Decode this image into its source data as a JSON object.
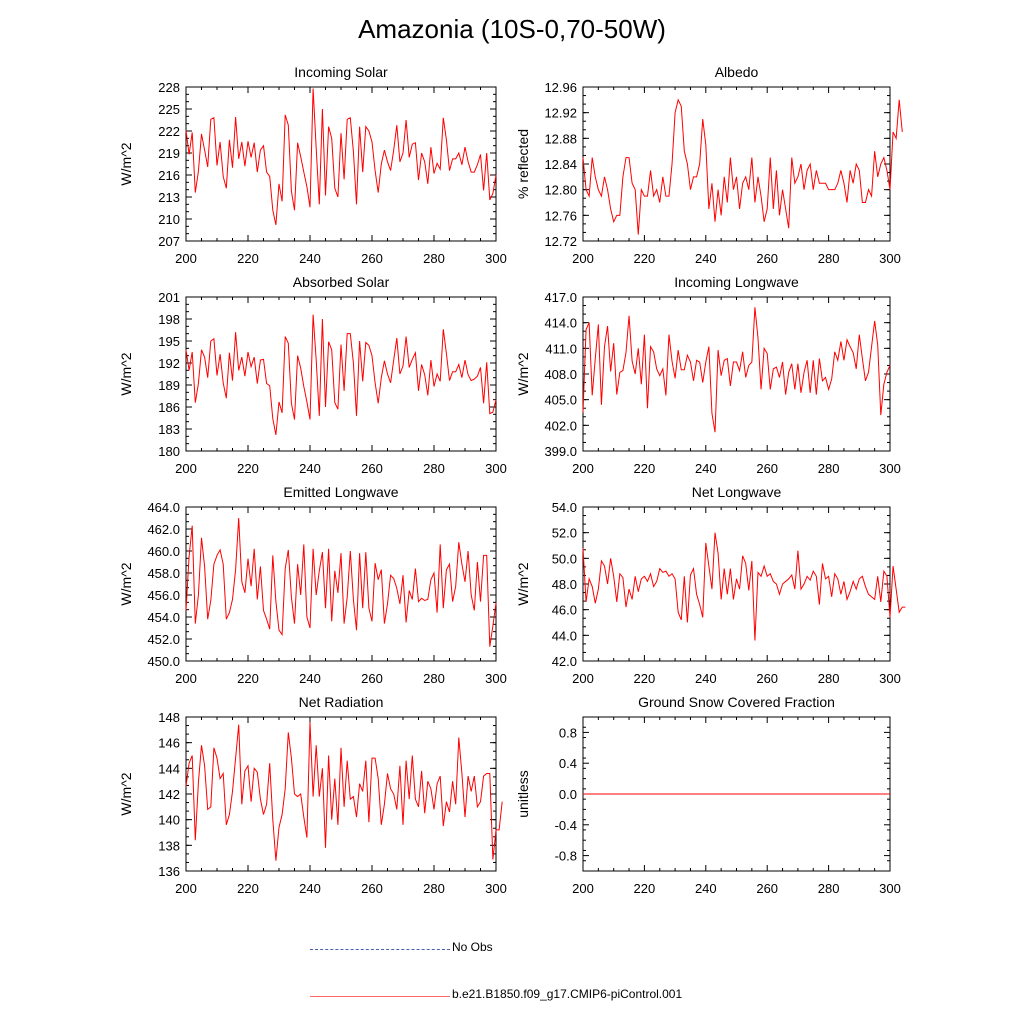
{
  "title": "Amazonia (10S-0,70-50W)",
  "colors": {
    "model": "#ff0000",
    "obs": "#4a5fb0",
    "axis": "#000000"
  },
  "legend": [
    {
      "label": "No Obs",
      "style": "dashed",
      "color": "#4a5fb0"
    },
    {
      "label": "b.e21.B1850.f09_g17.CMIP6-piControl.001",
      "style": "solid",
      "color": "#ff0000"
    }
  ],
  "chart_data": [
    {
      "type": "line",
      "title": "Incoming Solar",
      "xlabel": "",
      "ylabel": "W/m^2",
      "xlim": [
        200,
        300
      ],
      "ylim": [
        207,
        228
      ],
      "xticks": [
        "200",
        "220",
        "240",
        "260",
        "280",
        "300"
      ],
      "yticks": [
        "207",
        "210",
        "213",
        "216",
        "219",
        "222",
        "225",
        "228"
      ],
      "series": [
        {
          "name": "b.e21.B1850.f09_g17.CMIP6-piControl.001",
          "x_start": 200,
          "values": [
            222.1,
            218.8,
            221.8,
            213.6,
            216.5,
            221.6,
            219.4,
            217.1,
            223.6,
            223.8,
            217.3,
            220.5,
            215.8,
            214.2,
            220.8,
            217,
            223.9,
            218.2,
            220.5,
            217.2,
            220.6,
            218.4,
            220.4,
            216.4,
            219.4,
            220,
            216.4,
            215.8,
            211.2,
            209.2,
            214.8,
            212.4,
            224.2,
            222.8,
            213.8,
            211.2,
            220.4,
            218.5,
            216.4,
            214.4,
            211.6,
            227.8,
            219.6,
            212,
            225,
            213.2,
            222.6,
            221,
            214.2,
            213,
            221.7,
            215.4,
            223.6,
            223.8,
            219.2,
            212,
            222.6,
            216.4,
            222.6,
            222,
            220.5,
            216.6,
            213.6,
            217.5,
            219.4,
            217.8,
            216.6,
            219.4,
            222.8,
            217.8,
            219,
            223.5,
            218.4,
            220.2,
            220.4,
            215.3,
            219,
            217.8,
            214.8,
            219.8,
            216.2,
            217.6,
            216.8,
            223.8,
            220.8,
            216.6,
            218.2,
            218.2,
            219,
            217.4,
            219.8,
            217.8,
            216.4,
            216.4,
            217.4,
            218.8,
            213.9,
            219,
            212.6,
            213.5,
            216
          ]
        }
      ]
    },
    {
      "type": "line",
      "title": "Albedo",
      "xlabel": "",
      "ylabel": "% reflected",
      "xlim": [
        200,
        300
      ],
      "ylim": [
        12.72,
        12.96
      ],
      "xticks": [
        "200",
        "220",
        "240",
        "260",
        "280",
        "300"
      ],
      "yticks": [
        "12.72",
        "12.76",
        "12.80",
        "12.84",
        "12.88",
        "12.92",
        "12.96"
      ],
      "series": [
        {
          "name": "b.e21.B1850.f09_g17.CMIP6-piControl.001",
          "x_start": 200,
          "values": [
            12.85,
            12.8,
            12.79,
            12.85,
            12.82,
            12.8,
            12.79,
            12.82,
            12.8,
            12.77,
            12.75,
            12.76,
            12.76,
            12.82,
            12.85,
            12.85,
            12.81,
            12.8,
            12.73,
            12.8,
            12.79,
            12.79,
            12.83,
            12.79,
            12.8,
            12.78,
            12.82,
            12.79,
            12.79,
            12.84,
            12.92,
            12.94,
            12.93,
            12.86,
            12.84,
            12.8,
            12.82,
            12.82,
            12.84,
            12.91,
            12.87,
            12.77,
            12.81,
            12.75,
            12.8,
            12.76,
            12.82,
            12.78,
            12.85,
            12.8,
            12.82,
            12.77,
            12.81,
            12.82,
            12.8,
            12.85,
            12.78,
            12.82,
            12.79,
            12.75,
            12.77,
            12.85,
            12.77,
            12.83,
            12.76,
            12.8,
            12.77,
            12.74,
            12.85,
            12.81,
            12.82,
            12.84,
            12.8,
            12.83,
            12.84,
            12.8,
            12.83,
            12.81,
            12.81,
            12.81,
            12.8,
            12.8,
            12.8,
            12.81,
            12.83,
            12.81,
            12.78,
            12.83,
            12.81,
            12.84,
            12.83,
            12.78,
            12.78,
            12.8,
            12.79,
            12.86,
            12.82,
            12.84,
            12.85,
            12.83,
            12.8,
            12.89,
            12.88,
            12.94,
            12.89
          ]
        }
      ]
    },
    {
      "type": "line",
      "title": "Absorbed Solar",
      "xlabel": "",
      "ylabel": "W/m^2",
      "xlim": [
        200,
        300
      ],
      "ylim": [
        180,
        201
      ],
      "xticks": [
        "200",
        "220",
        "240",
        "260",
        "280",
        "300"
      ],
      "yticks": [
        "180",
        "183",
        "186",
        "189",
        "192",
        "195",
        "198",
        "201"
      ],
      "series": [
        {
          "name": "b.e21.B1850.f09_g17.CMIP6-piControl.001",
          "x_start": 200,
          "values": [
            193.8,
            191,
            193.5,
            186.6,
            189.2,
            193.8,
            192.8,
            190,
            195,
            195.3,
            190.3,
            193.2,
            189.3,
            187.2,
            193.4,
            189.6,
            196.2,
            191,
            192.8,
            190.2,
            193.5,
            191.5,
            192.8,
            189.2,
            192.4,
            192.5,
            189.2,
            188.9,
            184.4,
            182.2,
            186.7,
            185.2,
            195.6,
            194.7,
            186.5,
            184.3,
            193,
            191.3,
            188.8,
            186.7,
            184.3,
            198.6,
            192.4,
            184.8,
            198,
            186,
            194.9,
            193.8,
            186.6,
            185.7,
            194.5,
            188.2,
            196,
            196,
            192,
            184.8,
            195,
            189.5,
            194.8,
            194.4,
            193,
            189.3,
            186.5,
            190,
            192.3,
            190.5,
            189.3,
            192.4,
            195.4,
            190.5,
            191.6,
            195.6,
            191.4,
            192.5,
            193.4,
            188.2,
            191.8,
            190.4,
            187.6,
            192.4,
            188.8,
            190.5,
            189.5,
            196.6,
            193.3,
            189.6,
            190.8,
            190.8,
            191.8,
            190,
            192.4,
            190.4,
            189.6,
            189.8,
            190.2,
            191.4,
            186.5,
            192.1,
            185.1,
            185.3,
            187
          ]
        }
      ]
    },
    {
      "type": "line",
      "title": "Incoming Longwave",
      "xlabel": "",
      "ylabel": "W/m^2",
      "xlim": [
        200,
        300
      ],
      "ylim": [
        399,
        417
      ],
      "xticks": [
        "200",
        "220",
        "240",
        "260",
        "280",
        "300"
      ],
      "yticks": [
        "399.0",
        "402.0",
        "405.0",
        "408.0",
        "411.0",
        "414.0",
        "417.0"
      ],
      "series": [
        {
          "name": "b.e21.B1850.f09_g17.CMIP6-piControl.001",
          "x_start": 200,
          "values": [
            403.5,
            413.2,
            414,
            405.5,
            409.8,
            413.8,
            404.4,
            411.2,
            413.6,
            408.3,
            411.6,
            405.6,
            408.2,
            408.4,
            410.5,
            414.8,
            409.5,
            408,
            411,
            406.8,
            412.6,
            404,
            411.2,
            410.6,
            408.6,
            407.8,
            408.6,
            405.5,
            412.6,
            409.5,
            407.5,
            410.8,
            408.5,
            408.5,
            410.2,
            409.4,
            407.2,
            409.6,
            409.4,
            407,
            409.4,
            411.2,
            403.4,
            401.2,
            410.8,
            407.8,
            409.6,
            409.8,
            406.6,
            409.4,
            409.4,
            408.4,
            410.6,
            407.6,
            409,
            409.4,
            415.8,
            412.2,
            406.2,
            411,
            410.4,
            406.2,
            408.6,
            408.8,
            407.6,
            409.4,
            405.6,
            408.2,
            409.2,
            406.2,
            409.2,
            405.8,
            408.2,
            409.6,
            405.8,
            409.6,
            405.6,
            409.8,
            407.2,
            407.6,
            406.2,
            407.4,
            410.6,
            409.6,
            411.8,
            409.6,
            412,
            411.2,
            410.5,
            408.6,
            412.6,
            409.8,
            407.2,
            408.2,
            411.2,
            414.2,
            411.4,
            403.2,
            406.8,
            408.2,
            409
          ]
        }
      ]
    },
    {
      "type": "line",
      "title": "Emitted Longwave",
      "xlabel": "",
      "ylabel": "W/m^2",
      "xlim": [
        200,
        300
      ],
      "ylim": [
        450,
        464
      ],
      "xticks": [
        "200",
        "220",
        "240",
        "260",
        "280",
        "300"
      ],
      "yticks": [
        "450.0",
        "452.0",
        "454.0",
        "456.0",
        "458.0",
        "460.0",
        "462.0",
        "464.0"
      ],
      "series": [
        {
          "name": "b.e21.B1850.f09_g17.CMIP6-piControl.001",
          "x_start": 200,
          "values": [
            454.6,
            459.5,
            462.3,
            453.4,
            456,
            461.2,
            458.6,
            453.8,
            455.5,
            458.8,
            459.6,
            460.1,
            458.8,
            453.8,
            454.4,
            455.6,
            458.3,
            463,
            457.2,
            456.2,
            459.3,
            456.8,
            460.2,
            455.6,
            458.6,
            454.6,
            453.8,
            452.9,
            459.6,
            455.4,
            452.8,
            452.4,
            458.4,
            460.1,
            455.8,
            453.4,
            458.8,
            456,
            460.6,
            454,
            453,
            460.2,
            456,
            458.2,
            459.9,
            454.8,
            460.2,
            453.6,
            458.2,
            456.2,
            459.8,
            453.4,
            455.8,
            460,
            455.6,
            452.8,
            459.8,
            454.8,
            459.9,
            454.8,
            453.6,
            458.9,
            457.4,
            458.3,
            453.4,
            455.2,
            457.8,
            457.5,
            456.6,
            455.2,
            457.8,
            453.5,
            456.4,
            455.6,
            458.4,
            455.4,
            455.7,
            455.5,
            455.6,
            457.4,
            458,
            454.4,
            460.6,
            454.8,
            458.3,
            458.8,
            455.4,
            456.8,
            460.8,
            458.8,
            457.2,
            460,
            456,
            454.6,
            459,
            455.4,
            459.6,
            459.6,
            451.3,
            453.2,
            455.3
          ]
        }
      ]
    },
    {
      "type": "line",
      "title": "Net Longwave",
      "xlabel": "",
      "ylabel": "W/m^2",
      "xlim": [
        200,
        300
      ],
      "ylim": [
        42,
        54
      ],
      "xticks": [
        "200",
        "220",
        "240",
        "260",
        "280",
        "300"
      ],
      "yticks": [
        "42.0",
        "44.0",
        "46.0",
        "48.0",
        "50.0",
        "52.0",
        "54.0"
      ],
      "series": [
        {
          "name": "b.e21.B1850.f09_g17.CMIP6-piControl.001",
          "x_start": 200,
          "values": [
            50.8,
            46.6,
            48.4,
            47.8,
            46.5,
            47.6,
            49.8,
            49.4,
            48,
            50,
            48.6,
            46.6,
            48.8,
            48.5,
            46.2,
            47.6,
            46.8,
            48.6,
            47.4,
            48.4,
            48.6,
            48.2,
            48.8,
            47.8,
            48.2,
            49.2,
            48.9,
            49,
            48.6,
            48.8,
            48.4,
            45.8,
            45.2,
            48.6,
            45,
            48.7,
            49.2,
            47.2,
            46.4,
            45.4,
            51.2,
            49.4,
            47.6,
            52,
            50.4,
            46.8,
            49.2,
            47.2,
            49.2,
            46.8,
            48.4,
            47.6,
            50.2,
            49.6,
            47.5,
            49.8,
            43.6,
            48.9,
            48.6,
            49.4,
            48.6,
            48.8,
            48.2,
            48,
            47.2,
            48,
            48.2,
            48.4,
            48.7,
            47.6,
            50.6,
            47.6,
            48,
            48.6,
            48.3,
            49,
            48.6,
            46.4,
            49.6,
            48.4,
            48.6,
            47,
            48.8,
            48.4,
            47.2,
            48.2,
            46.8,
            47.4,
            48.2,
            47.6,
            48.4,
            48.6,
            47.8,
            47.2,
            47,
            46.8,
            48.6,
            46.6,
            49,
            48.6,
            45.4,
            49.4,
            47.6,
            45.8,
            46.2,
            46.2
          ]
        }
      ]
    },
    {
      "type": "line",
      "title": "Net Radiation",
      "xlabel": "",
      "ylabel": "W/m^2",
      "xlim": [
        200,
        300
      ],
      "ylim": [
        136,
        148
      ],
      "xticks": [
        "200",
        "220",
        "240",
        "260",
        "280",
        "300"
      ],
      "yticks": [
        "136",
        "138",
        "140",
        "142",
        "144",
        "146",
        "148"
      ],
      "series": [
        {
          "name": "b.e21.B1850.f09_g17.CMIP6-piControl.001",
          "x_start": 200,
          "values": [
            142.6,
            144.4,
            145,
            138.4,
            142.9,
            145.8,
            144.2,
            140.8,
            141,
            145.6,
            144.8,
            143.2,
            143.6,
            139.6,
            140.4,
            142.2,
            144.8,
            147.4,
            141.2,
            143.8,
            144.2,
            141.4,
            144,
            143.7,
            141.6,
            140.4,
            141.2,
            144.4,
            140,
            136.8,
            139.4,
            140.4,
            142.4,
            146.8,
            144.8,
            142,
            141.8,
            142,
            140.2,
            138.6,
            147.6,
            141.8,
            145.8,
            141.8,
            144,
            137.8,
            145,
            140,
            143.2,
            139.6,
            145.6,
            141,
            144.6,
            141.6,
            141.8,
            140.2,
            142.8,
            142.2,
            144.6,
            139.8,
            144.8,
            144.8,
            143.2,
            139.6,
            141.2,
            143.6,
            142.4,
            142,
            140.8,
            144.2,
            139.6,
            144.6,
            141.6,
            145,
            141.6,
            141,
            143.8,
            140.5,
            143,
            142.4,
            140.8,
            142.8,
            143.4,
            139.5,
            141.4,
            140.6,
            143,
            141.2,
            146.4,
            143.6,
            140.2,
            143.4,
            142.2,
            143.4,
            141,
            141.4,
            143.4,
            143.6,
            143.6,
            136.9,
            139.2,
            139.2,
            141.4
          ]
        }
      ]
    },
    {
      "type": "line",
      "title": "Ground Snow Covered Fraction",
      "xlabel": "",
      "ylabel": "unitless",
      "xlim": [
        200,
        300
      ],
      "ylim": [
        -1,
        1
      ],
      "xticks": [
        "200",
        "220",
        "240",
        "260",
        "280",
        "300"
      ],
      "yticks": [
        "-0.8",
        "-0.4",
        "0.0",
        "0.4",
        "0.8"
      ],
      "series": [
        {
          "name": "b.e21.B1850.f09_g17.CMIP6-piControl.001",
          "x_start": 200,
          "constant": 0
        }
      ]
    }
  ]
}
